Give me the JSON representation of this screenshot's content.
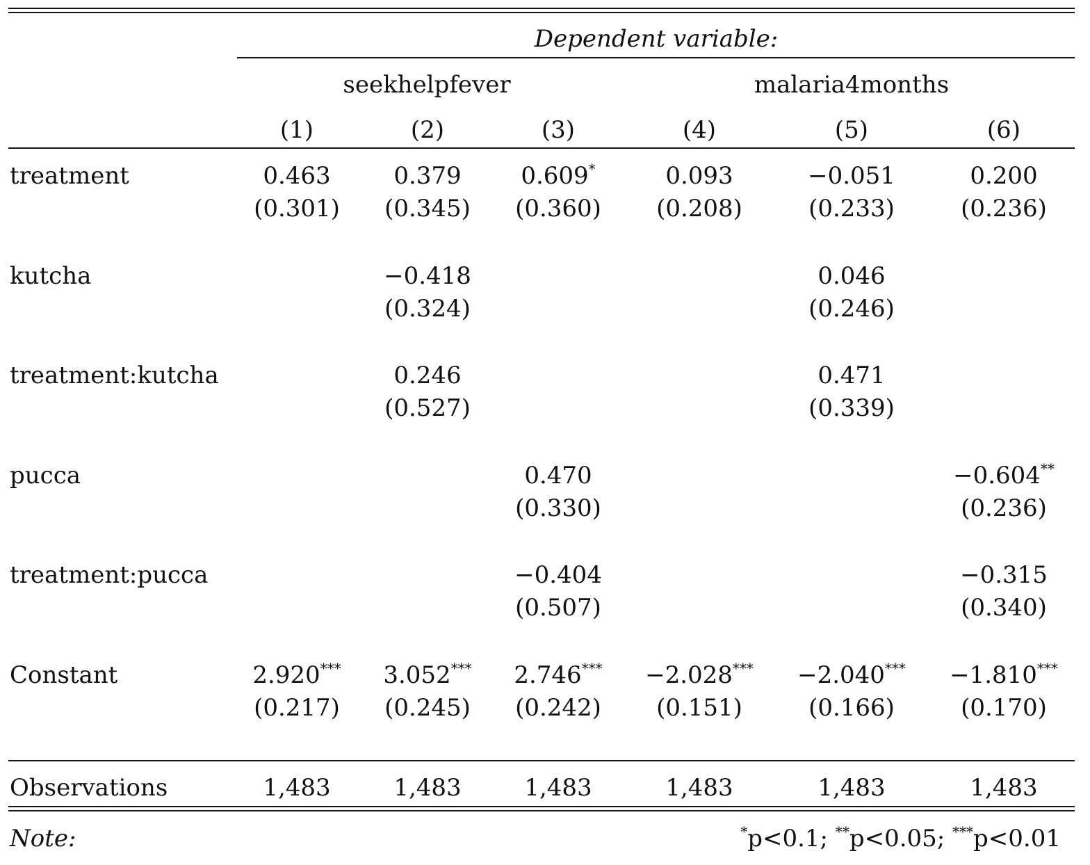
{
  "table": {
    "dependent_variable_label": "Dependent variable:",
    "groups": [
      {
        "name": "seekhelpfever"
      },
      {
        "name": "malaria4months"
      }
    ],
    "columns": [
      "(1)",
      "(2)",
      "(3)",
      "(4)",
      "(5)",
      "(6)"
    ],
    "rows": [
      {
        "label": "treatment",
        "values": [
          {
            "est": "0.463",
            "stars": "",
            "se": "(0.301)"
          },
          {
            "est": "0.379",
            "stars": "",
            "se": "(0.345)"
          },
          {
            "est": "0.609",
            "stars": "*",
            "se": "(0.360)"
          },
          {
            "est": "0.093",
            "stars": "",
            "se": "(0.208)"
          },
          {
            "est": "−0.051",
            "stars": "",
            "se": "(0.233)"
          },
          {
            "est": "0.200",
            "stars": "",
            "se": "(0.236)"
          }
        ]
      },
      {
        "label": "kutcha",
        "values": [
          null,
          {
            "est": "−0.418",
            "stars": "",
            "se": "(0.324)"
          },
          null,
          null,
          {
            "est": "0.046",
            "stars": "",
            "se": "(0.246)"
          },
          null
        ]
      },
      {
        "label": "treatment:kutcha",
        "values": [
          null,
          {
            "est": "0.246",
            "stars": "",
            "se": "(0.527)"
          },
          null,
          null,
          {
            "est": "0.471",
            "stars": "",
            "se": "(0.339)"
          },
          null
        ]
      },
      {
        "label": "pucca",
        "values": [
          null,
          null,
          {
            "est": "0.470",
            "stars": "",
            "se": "(0.330)"
          },
          null,
          null,
          {
            "est": "−0.604",
            "stars": "**",
            "se": "(0.236)"
          }
        ]
      },
      {
        "label": "treatment:pucca",
        "values": [
          null,
          null,
          {
            "est": "−0.404",
            "stars": "",
            "se": "(0.507)"
          },
          null,
          null,
          {
            "est": "−0.315",
            "stars": "",
            "se": "(0.340)"
          }
        ]
      },
      {
        "label": "Constant",
        "values": [
          {
            "est": "2.920",
            "stars": "***",
            "se": "(0.217)"
          },
          {
            "est": "3.052",
            "stars": "***",
            "se": "(0.245)"
          },
          {
            "est": "2.746",
            "stars": "***",
            "se": "(0.242)"
          },
          {
            "est": "−2.028",
            "stars": "***",
            "se": "(0.151)"
          },
          {
            "est": "−2.040",
            "stars": "***",
            "se": "(0.166)"
          },
          {
            "est": "−1.810",
            "stars": "***",
            "se": "(0.170)"
          }
        ]
      }
    ],
    "observations": {
      "label": "Observations",
      "values": [
        "1,483",
        "1,483",
        "1,483",
        "1,483",
        "1,483",
        "1,483"
      ]
    },
    "note": {
      "label": "Note:",
      "parts": [
        {
          "stars": "*",
          "text": "p<0.1; "
        },
        {
          "stars": "**",
          "text": "p<0.05; "
        },
        {
          "stars": "***",
          "text": "p<0.01"
        }
      ]
    }
  }
}
